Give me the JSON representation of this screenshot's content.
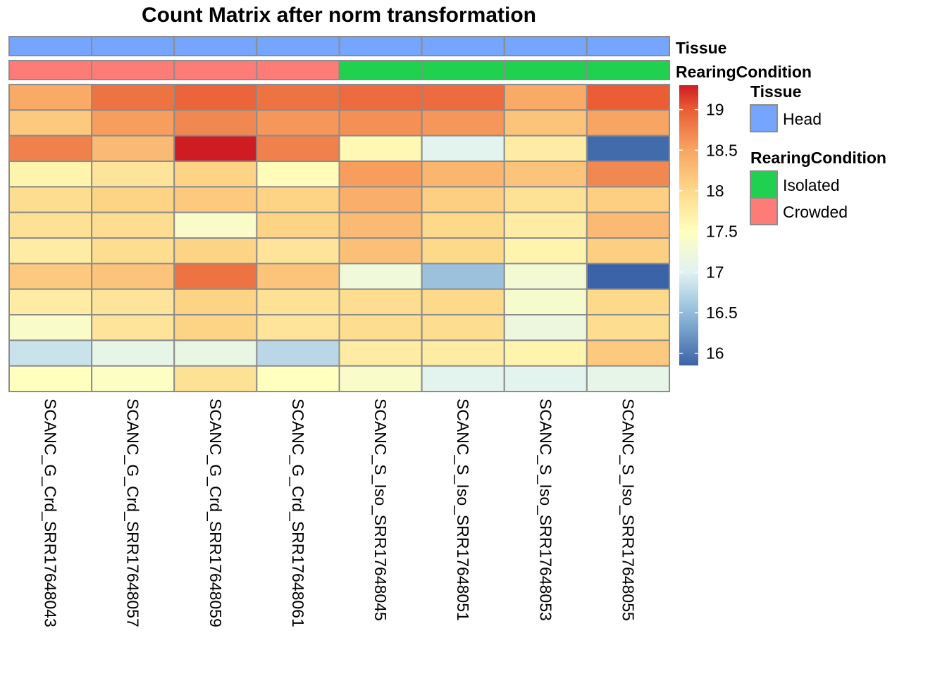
{
  "chart_data": {
    "type": "heatmap",
    "title": "Count Matrix after norm transformation",
    "columns": [
      "SCANC_G_Crd_SRR17648043",
      "SCANC_G_Crd_SRR17648057",
      "SCANC_G_Crd_SRR17648059",
      "SCANC_G_Crd_SRR17648061",
      "SCANC_S_Iso_SRR17648045",
      "SCANC_S_Iso_SRR17648051",
      "SCANC_S_Iso_SRR17648053",
      "SCANC_S_Iso_SRR17648055"
    ],
    "values": [
      [
        18.45,
        18.85,
        18.95,
        18.85,
        18.9,
        18.9,
        18.45,
        19.0
      ],
      [
        18.15,
        18.55,
        18.7,
        18.6,
        18.65,
        18.6,
        18.2,
        18.5
      ],
      [
        18.75,
        18.3,
        19.3,
        18.75,
        17.6,
        17.05,
        17.75,
        15.9
      ],
      [
        17.65,
        17.85,
        18.05,
        17.55,
        18.55,
        18.35,
        18.2,
        18.7
      ],
      [
        17.95,
        18.05,
        18.15,
        18.05,
        18.4,
        18.1,
        17.9,
        18.1
      ],
      [
        17.9,
        17.95,
        17.4,
        18.05,
        18.3,
        18.0,
        17.75,
        18.3
      ],
      [
        17.75,
        17.95,
        18.05,
        17.85,
        18.25,
        18.0,
        17.65,
        18.1
      ],
      [
        18.15,
        18.2,
        18.85,
        18.2,
        17.25,
        16.55,
        17.3,
        15.85
      ],
      [
        17.75,
        17.85,
        18.05,
        17.9,
        17.95,
        18.0,
        17.35,
        18.0
      ],
      [
        17.4,
        17.85,
        18.05,
        17.85,
        17.95,
        17.95,
        17.2,
        17.95
      ],
      [
        16.85,
        17.1,
        17.15,
        16.75,
        17.75,
        17.75,
        17.65,
        18.15
      ],
      [
        17.5,
        17.45,
        17.9,
        17.5,
        17.4,
        17.05,
        17.05,
        17.1
      ]
    ],
    "color_scale": {
      "min": 15.85,
      "max": 19.3,
      "stops": [
        {
          "value": 15.85,
          "color": "#3b64a8"
        },
        {
          "value": 16.5,
          "color": "#93bcdb"
        },
        {
          "value": 17.0,
          "color": "#e0f2f3"
        },
        {
          "value": 17.5,
          "color": "#ffffbe"
        },
        {
          "value": 18.0,
          "color": "#fdd98a"
        },
        {
          "value": 18.5,
          "color": "#f8a563"
        },
        {
          "value": 19.0,
          "color": "#ea5d35"
        },
        {
          "value": 19.3,
          "color": "#cf1c22"
        }
      ],
      "ticks": [
        "19",
        "18.5",
        "18",
        "17.5",
        "17",
        "16.5",
        "16"
      ],
      "tick_values": [
        19,
        18.5,
        18,
        17.5,
        17,
        16.5,
        16
      ]
    },
    "annotations": [
      {
        "name": "Tissue",
        "values": [
          "Head",
          "Head",
          "Head",
          "Head",
          "Head",
          "Head",
          "Head",
          "Head"
        ],
        "colors": {
          "Head": "#76a5fd"
        }
      },
      {
        "name": "RearingCondition",
        "values": [
          "Crowded",
          "Crowded",
          "Crowded",
          "Crowded",
          "Isolated",
          "Isolated",
          "Isolated",
          "Isolated"
        ],
        "colors": {
          "Isolated": "#1fd14e",
          "Crowded": "#fd7c77"
        }
      }
    ],
    "legend": {
      "position": "right",
      "groups": [
        {
          "title": "Tissue",
          "items": [
            "Head"
          ]
        },
        {
          "title": "RearingCondition",
          "items": [
            "Isolated",
            "Crowded"
          ]
        }
      ]
    },
    "grid_color": "#8c8c8c"
  }
}
